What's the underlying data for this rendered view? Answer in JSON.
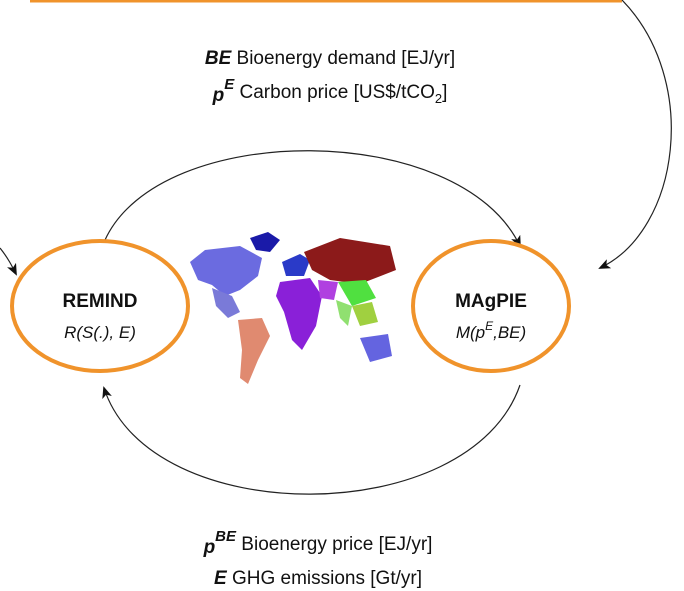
{
  "top_labels": [
    {
      "symbol": "BE",
      "text": "Bioenergy demand [EJ/yr]"
    },
    {
      "symbol": "p",
      "superscript": "E",
      "text": "Carbon price [US$/tCO",
      "subscript": "2",
      "suffix": "]"
    }
  ],
  "bottom_labels": [
    {
      "symbol": "p",
      "superscript": "BE",
      "text": "Bioenergy price [EJ/yr]"
    },
    {
      "symbol": "E",
      "text": "GHG emissions [Gt/yr]"
    }
  ],
  "nodes": [
    {
      "label": "REMIND",
      "formula": "R(S(.), E)"
    },
    {
      "label": "MAgPIE",
      "formula_base": "M(p",
      "formula_superscript": "E",
      "formula_suffix": ",BE)"
    }
  ]
}
